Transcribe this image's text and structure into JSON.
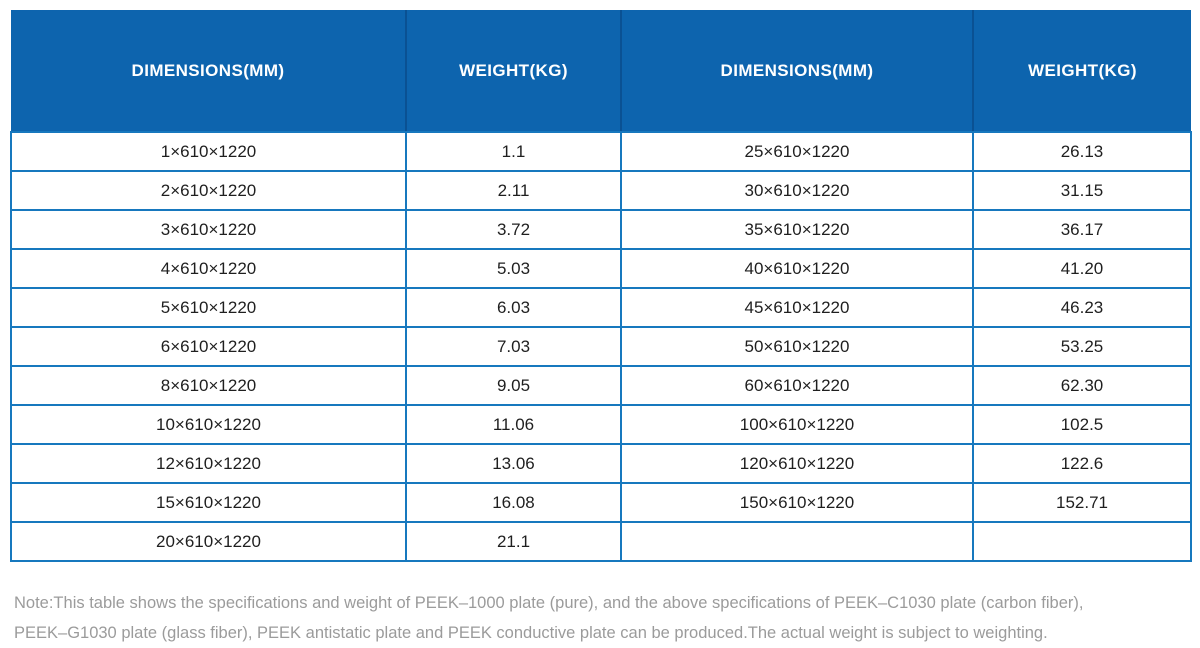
{
  "table": {
    "columns": [
      "DIMENSIONS(MM)",
      "WEIGHT(KG)",
      "DIMENSIONS(MM)",
      "WEIGHT(KG)"
    ],
    "rows": [
      [
        "1×610×1220",
        "1.1",
        "25×610×1220",
        "26.13"
      ],
      [
        "2×610×1220",
        "2.11",
        "30×610×1220",
        "31.15"
      ],
      [
        "3×610×1220",
        "3.72",
        "35×610×1220",
        "36.17"
      ],
      [
        "4×610×1220",
        "5.03",
        "40×610×1220",
        "41.20"
      ],
      [
        "5×610×1220",
        "6.03",
        "45×610×1220",
        "46.23"
      ],
      [
        "6×610×1220",
        "7.03",
        "50×610×1220",
        "53.25"
      ],
      [
        "8×610×1220",
        "9.05",
        "60×610×1220",
        "62.30"
      ],
      [
        "10×610×1220",
        "11.06",
        "100×610×1220",
        "102.5"
      ],
      [
        "12×610×1220",
        "13.06",
        "120×610×1220",
        "122.6"
      ],
      [
        "15×610×1220",
        "16.08",
        "150×610×1220",
        "152.71"
      ],
      [
        "20×610×1220",
        "21.1",
        "",
        ""
      ]
    ]
  },
  "note": {
    "line1": "Note:This table shows the specifications and weight of PEEK–1000 plate (pure), and the above specifications of PEEK–C1030 plate (carbon fiber),",
    "line2": "PEEK–G1030 plate (glass fiber), PEEK antistatic plate and PEEK conductive plate can be produced.The actual weight is subject to weighting."
  },
  "colors": {
    "header_bg": "#0d64ae",
    "header_divider": "#0a5193",
    "grid_border": "#1778be",
    "cell_text": "#1f1f1f",
    "note_text": "#9b9b9b",
    "background": "#ffffff"
  }
}
